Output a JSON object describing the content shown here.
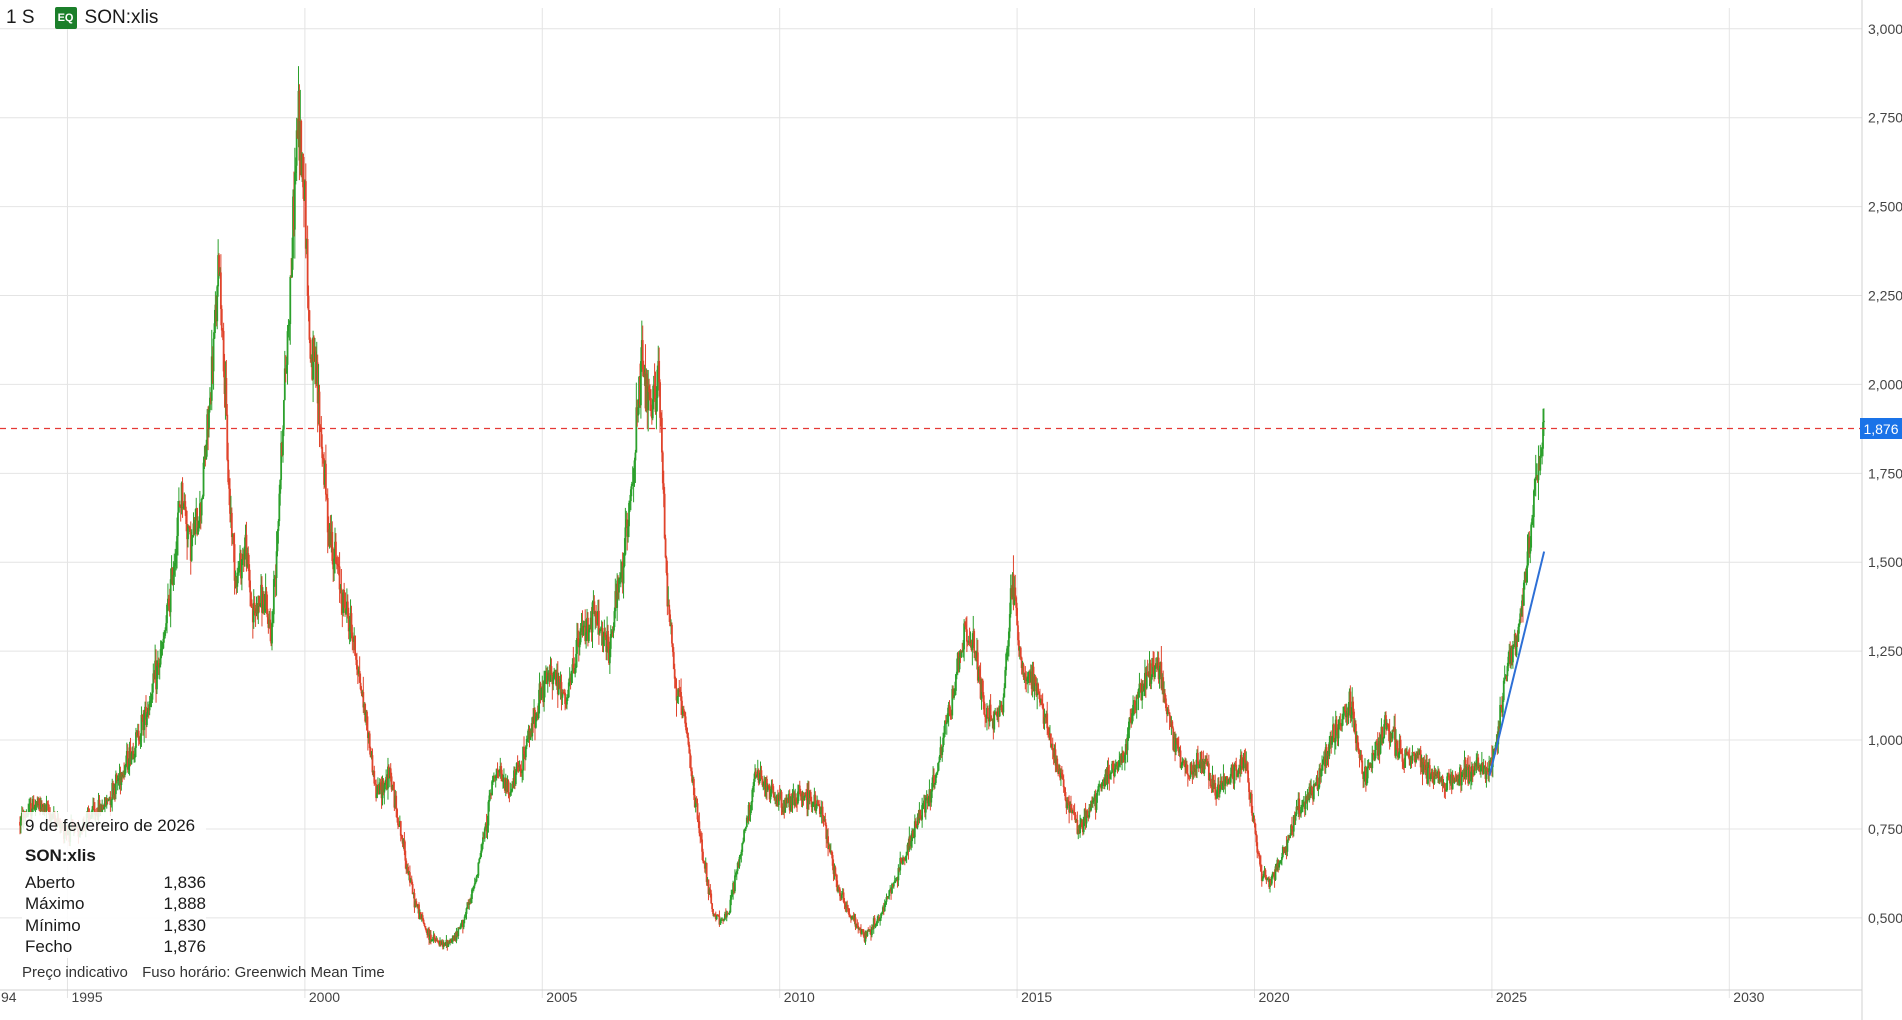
{
  "header": {
    "interval": "1 S",
    "badge": "EQ",
    "symbol": "SON:xlis"
  },
  "info": {
    "date": "9 de fevereiro de 2026",
    "symbol": "SON:xlis",
    "rows": [
      {
        "label": "Aberto",
        "value": "1,836"
      },
      {
        "label": "Máximo",
        "value": "1,888"
      },
      {
        "label": "Mínimo",
        "value": "1,830"
      },
      {
        "label": "Fecho",
        "value": "1,876"
      }
    ],
    "note_price": "Preço indicativo",
    "note_timezone": "Fuso horário: Greenwich Mean Time"
  },
  "last_price_label": "1,876",
  "colors": {
    "up": "#2ca02c",
    "down": "#e0442c",
    "grid": "#e4e4e4",
    "last_line": "#e53935",
    "last_badge": "#1a73e8",
    "trend": "#2d6fd6",
    "badge": "#1b7f2a"
  },
  "chart_data": {
    "type": "line",
    "style": "weekly candlesticks",
    "x_axis": {
      "type": "date",
      "range": [
        1994.0,
        2032.5
      ],
      "ticks": [
        1995,
        2000,
        2005,
        2010,
        2015,
        2020,
        2025,
        2030
      ],
      "tick_labels": [
        "1995",
        "2000",
        "2005",
        "2010",
        "2015",
        "2020",
        "2025",
        "2030"
      ],
      "leading_partial_label": "94"
    },
    "y_axis": {
      "position": "right",
      "range": [
        0.3,
        3.05
      ],
      "ticks": [
        0.5,
        0.75,
        1.0,
        1.25,
        1.5,
        1.75,
        2.0,
        2.25,
        2.5,
        2.75,
        3.0
      ],
      "tick_labels": [
        "0,500",
        "0,750",
        "1,000",
        "1,250",
        "1,500",
        "1,750",
        "2,000",
        "2,250",
        "2,500",
        "2,750",
        "3,000"
      ]
    },
    "grid": true,
    "last_price": 1.876,
    "series": [
      {
        "values_kind": "approximate close (year, price)",
        "x": [
          1994.0,
          1994.3,
          1994.6,
          1994.9,
          1995.2,
          1995.5,
          1995.8,
          1996.1,
          1996.4,
          1996.7,
          1997.0,
          1997.2,
          1997.4,
          1997.6,
          1997.8,
          1998.0,
          1998.2,
          1998.4,
          1998.55,
          1998.75,
          1998.9,
          1999.1,
          1999.3,
          1999.5,
          1999.7,
          1999.85,
          2000.0,
          2000.1,
          2000.25,
          2000.5,
          2000.8,
          2001.0,
          2001.3,
          2001.5,
          2001.8,
          2002.0,
          2002.3,
          2002.6,
          2002.9,
          2003.2,
          2003.5,
          2003.8,
          2004.0,
          2004.3,
          2004.6,
          2004.9,
          2005.2,
          2005.5,
          2005.8,
          2006.1,
          2006.4,
          2006.7,
          2006.9,
          2007.1,
          2007.3,
          2007.45,
          2007.6,
          2007.8,
          2008.0,
          2008.3,
          2008.6,
          2008.9,
          2009.2,
          2009.5,
          2009.8,
          2010.1,
          2010.5,
          2010.9,
          2011.2,
          2011.5,
          2011.8,
          2012.1,
          2012.4,
          2012.7,
          2013.0,
          2013.3,
          2013.6,
          2013.9,
          2014.1,
          2014.4,
          2014.7,
          2014.9,
          2015.1,
          2015.4,
          2015.7,
          2016.0,
          2016.3,
          2016.6,
          2016.9,
          2017.2,
          2017.5,
          2017.8,
          2018.0,
          2018.3,
          2018.6,
          2018.9,
          2019.2,
          2019.5,
          2019.8,
          2020.0,
          2020.15,
          2020.3,
          2020.6,
          2020.9,
          2021.2,
          2021.5,
          2021.8,
          2022.0,
          2022.3,
          2022.5,
          2022.8,
          2023.1,
          2023.4,
          2023.7,
          2024.0,
          2024.3,
          2024.6,
          2024.9,
          2025.1,
          2025.3,
          2025.5,
          2025.7,
          2025.9,
          2026.1
        ],
        "y": [
          0.77,
          0.82,
          0.8,
          0.75,
          0.74,
          0.79,
          0.82,
          0.9,
          0.98,
          1.1,
          1.25,
          1.45,
          1.7,
          1.55,
          1.65,
          1.95,
          2.35,
          1.7,
          1.45,
          1.55,
          1.35,
          1.4,
          1.3,
          1.8,
          2.3,
          2.75,
          2.55,
          2.1,
          2.0,
          1.6,
          1.4,
          1.3,
          1.05,
          0.85,
          0.9,
          0.75,
          0.55,
          0.45,
          0.42,
          0.45,
          0.55,
          0.75,
          0.92,
          0.85,
          0.95,
          1.1,
          1.2,
          1.1,
          1.3,
          1.35,
          1.25,
          1.5,
          1.75,
          2.05,
          1.9,
          2.05,
          1.5,
          1.15,
          1.05,
          0.75,
          0.5,
          0.5,
          0.7,
          0.9,
          0.85,
          0.82,
          0.85,
          0.8,
          0.6,
          0.5,
          0.45,
          0.5,
          0.6,
          0.7,
          0.8,
          0.9,
          1.1,
          1.3,
          1.25,
          1.05,
          1.1,
          1.45,
          1.2,
          1.15,
          1.0,
          0.85,
          0.75,
          0.82,
          0.9,
          0.95,
          1.1,
          1.2,
          1.2,
          1.0,
          0.9,
          0.95,
          0.85,
          0.9,
          0.95,
          0.75,
          0.62,
          0.6,
          0.68,
          0.8,
          0.85,
          0.95,
          1.05,
          1.1,
          0.9,
          0.95,
          1.05,
          0.95,
          0.95,
          0.9,
          0.88,
          0.9,
          0.92,
          0.9,
          1.0,
          1.2,
          1.28,
          1.45,
          1.7,
          1.876
        ]
      }
    ],
    "trend_line": {
      "x": [
        2024.95,
        2026.1
      ],
      "y": [
        0.9,
        1.53
      ]
    }
  }
}
